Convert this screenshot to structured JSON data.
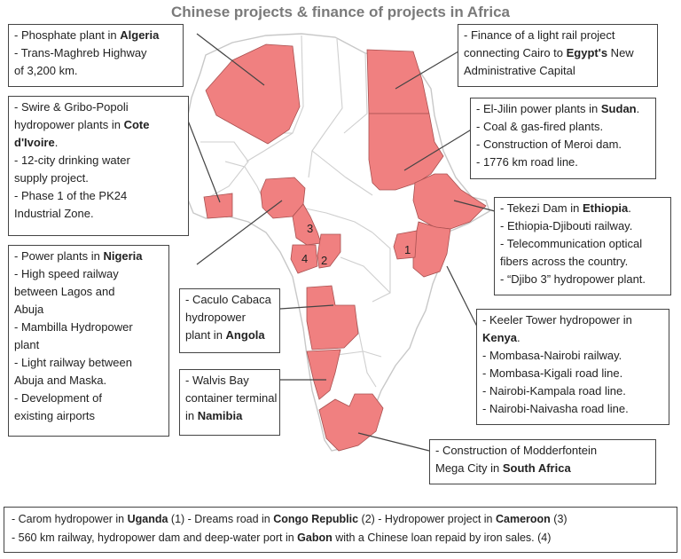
{
  "title": "Chinese projects & finance of projects in Africa",
  "colors": {
    "highlight_country": "#f08080",
    "country_border": "#c8c8c8",
    "highlight_border": "#a85050",
    "leader_line": "#444444"
  },
  "map_numbers": [
    "1",
    "2",
    "3",
    "4"
  ],
  "callouts": {
    "algeria": [
      [
        "- Phosphate plant in ",
        {
          "b": "Algeria"
        }
      ],
      [
        "- Trans-Maghreb Highway"
      ],
      [
        "of 3,200 km."
      ]
    ],
    "egypt": [
      [
        "- Finance of a light rail project"
      ],
      [
        "connecting Cairo to ",
        {
          "b": "Egypt's"
        },
        " New"
      ],
      [
        "Administrative Capital"
      ]
    ],
    "cote_divoire": [
      [
        "- Swire & Gribo-Popoli"
      ],
      [
        "hydropower plants in ",
        {
          "b": "Cote"
        }
      ],
      [
        {
          "b": "d'Ivoire"
        },
        "."
      ],
      [
        "- 12-city drinking water"
      ],
      [
        "supply project."
      ],
      [
        "- Phase 1 of the PK24"
      ],
      [
        "Industrial Zone."
      ]
    ],
    "sudan": [
      [
        "- El-Jilin power plants in ",
        {
          "b": "Sudan"
        },
        "."
      ],
      [
        "- Coal & gas-fired plants."
      ],
      [
        "- Construction of Meroi dam."
      ],
      [
        "- 1776 km road line."
      ]
    ],
    "ethiopia": [
      [
        "- Tekezi Dam in ",
        {
          "b": "Ethiopia"
        },
        "."
      ],
      [
        "- Ethiopia-Djibouti railway."
      ],
      [
        "- Telecommunication optical"
      ],
      [
        "fibers across the country."
      ],
      [
        "- “Djibo 3” hydropower plant."
      ]
    ],
    "nigeria": [
      [
        "- Power plants in ",
        {
          "b": "Nigeria"
        }
      ],
      [
        "- High speed railway"
      ],
      [
        "between Lagos and"
      ],
      [
        "Abuja"
      ],
      [
        "- Mambilla Hydropower"
      ],
      [
        "plant"
      ],
      [
        "- Light railway between"
      ],
      [
        "Abuja and Maska."
      ],
      [
        "- Development of"
      ],
      [
        "existing airports"
      ]
    ],
    "angola": [
      [
        "- Caculo Cabaca"
      ],
      [
        "hydropower"
      ],
      [
        "plant in ",
        {
          "b": "Angola"
        }
      ]
    ],
    "namibia": [
      [
        "- Walvis Bay"
      ],
      [
        "container terminal"
      ],
      [
        "in ",
        {
          "b": "Namibia"
        }
      ]
    ],
    "kenya": [
      [
        "- Keeler Tower hydropower in"
      ],
      [
        {
          "b": "Kenya"
        },
        "."
      ],
      [
        "- Mombasa-Nairobi railway."
      ],
      [
        "- Mombasa-Kigali road line."
      ],
      [
        "- Nairobi-Kampala road line."
      ],
      [
        "- Nairobi-Naivasha road line."
      ]
    ],
    "south_africa": [
      [
        "- Construction of Modderfontein"
      ],
      [
        "Mega City in ",
        {
          "b": "South Africa"
        }
      ]
    ],
    "bottom": [
      [
        "- Carom hydropower in ",
        {
          "b": "Uganda"
        },
        " (1)  - Dreams road in ",
        {
          "b": "Congo Republic"
        },
        " (2)  - Hydropower project in ",
        {
          "b": "Cameroon"
        },
        " (3)"
      ],
      [
        "- 560 km railway, hydropower dam and deep-water port in ",
        {
          "b": "Gabon"
        },
        " with a Chinese loan repaid by iron sales. (4)"
      ]
    ]
  }
}
